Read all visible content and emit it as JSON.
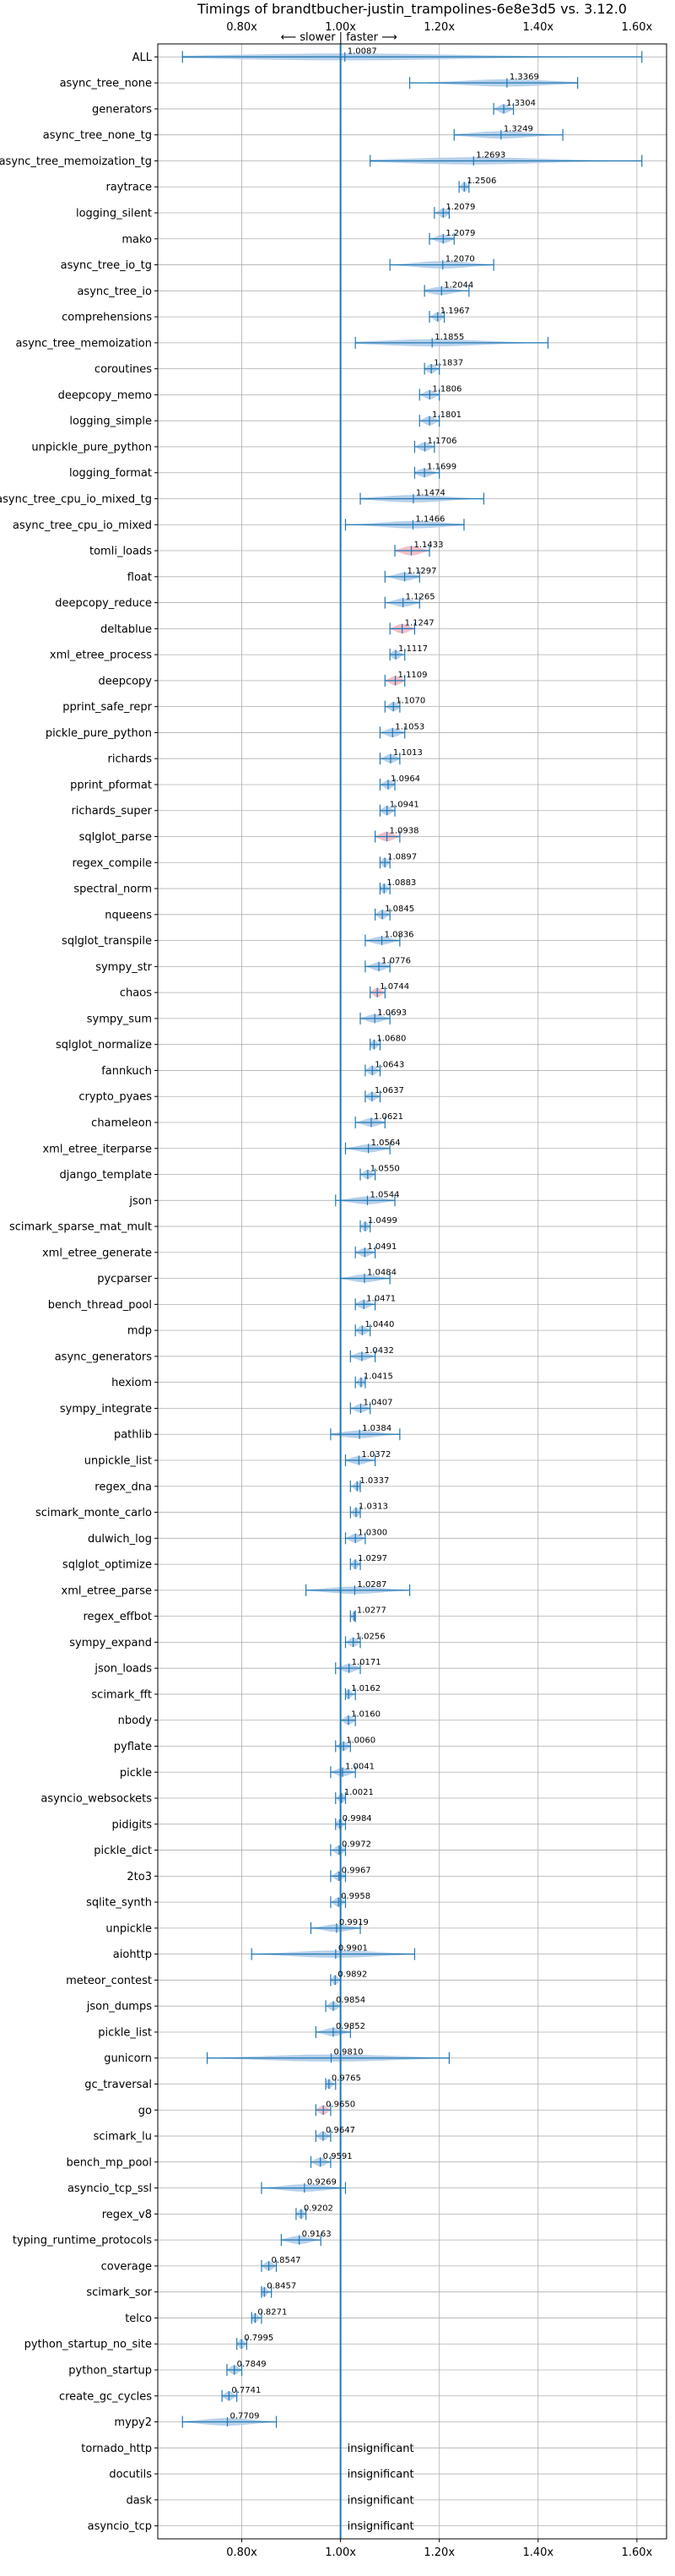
{
  "chart_data": {
    "type": "violin",
    "title": "Timings of brandtbucher-justin_trampolines-6e8e3d5 vs. 3.12.0",
    "annotation": "⟵ slower | faster ⟶",
    "xlim": [
      0.63,
      1.66
    ],
    "xticks": [
      0.8,
      1.0,
      1.2,
      1.4,
      1.6
    ],
    "xtick_labels": [
      "0.80x",
      "1.00x",
      "1.20x",
      "1.40x",
      "1.60x"
    ],
    "grid": true,
    "reference_line": 1.0,
    "colors": {
      "violin": "#aac8e6",
      "violin_edge": "#8fb3d9",
      "significant_slower": "#f2b3bd",
      "line": "#1f77b4",
      "grid": "#b0b0b0"
    },
    "benchmarks": [
      {
        "name": "ALL",
        "value": 1.0087,
        "label": "1.0087",
        "min": 0.68,
        "max": 1.61,
        "width": 0.012
      },
      {
        "name": "async_tree_none",
        "value": 1.3369,
        "label": "1.3369",
        "min": 1.14,
        "max": 1.48,
        "width": 0.022
      },
      {
        "name": "generators",
        "value": 1.3304,
        "label": "1.3304",
        "min": 1.31,
        "max": 1.35,
        "width": 0.015
      },
      {
        "name": "async_tree_none_tg",
        "value": 1.3249,
        "label": "1.3249",
        "min": 1.23,
        "max": 1.45,
        "width": 0.016
      },
      {
        "name": "async_tree_memoization_tg",
        "value": 1.2693,
        "label": "1.2693",
        "min": 1.06,
        "max": 1.61,
        "width": 0.024
      },
      {
        "name": "raytrace",
        "value": 1.2506,
        "label": "1.2506",
        "min": 1.24,
        "max": 1.26,
        "width": 0.012
      },
      {
        "name": "logging_silent",
        "value": 1.2079,
        "label": "1.2079",
        "min": 1.19,
        "max": 1.22,
        "width": 0.014
      },
      {
        "name": "mako",
        "value": 1.2079,
        "label": "1.2079",
        "min": 1.18,
        "max": 1.23,
        "width": 0.014
      },
      {
        "name": "async_tree_io_tg",
        "value": 1.207,
        "label": "1.2070",
        "min": 1.1,
        "max": 1.31,
        "width": 0.018
      },
      {
        "name": "async_tree_io",
        "value": 1.2044,
        "label": "1.2044",
        "min": 1.17,
        "max": 1.26,
        "width": 0.016
      },
      {
        "name": "comprehensions",
        "value": 1.1967,
        "label": "1.1967",
        "min": 1.18,
        "max": 1.21,
        "width": 0.013
      },
      {
        "name": "async_tree_memoization",
        "value": 1.1855,
        "label": "1.1855",
        "min": 1.03,
        "max": 1.42,
        "width": 0.02
      },
      {
        "name": "coroutines",
        "value": 1.1837,
        "label": "1.1837",
        "min": 1.17,
        "max": 1.2,
        "width": 0.013
      },
      {
        "name": "deepcopy_memo",
        "value": 1.1806,
        "label": "1.1806",
        "min": 1.16,
        "max": 1.2,
        "width": 0.014
      },
      {
        "name": "logging_simple",
        "value": 1.1801,
        "label": "1.1801",
        "min": 1.16,
        "max": 1.2,
        "width": 0.014
      },
      {
        "name": "unpickle_pure_python",
        "value": 1.1706,
        "label": "1.1706",
        "min": 1.15,
        "max": 1.19,
        "width": 0.014
      },
      {
        "name": "logging_format",
        "value": 1.1699,
        "label": "1.1699",
        "min": 1.15,
        "max": 1.2,
        "width": 0.014
      },
      {
        "name": "async_tree_cpu_io_mixed_tg",
        "value": 1.1474,
        "label": "1.1474",
        "min": 1.04,
        "max": 1.29,
        "width": 0.02
      },
      {
        "name": "async_tree_cpu_io_mixed",
        "value": 1.1466,
        "label": "1.1466",
        "min": 1.01,
        "max": 1.25,
        "width": 0.02
      },
      {
        "name": "tomli_loads",
        "value": 1.1433,
        "label": "1.1433",
        "min": 1.11,
        "max": 1.18,
        "width": 0.026,
        "significant": true
      },
      {
        "name": "float",
        "value": 1.1297,
        "label": "1.1297",
        "min": 1.09,
        "max": 1.16,
        "width": 0.016
      },
      {
        "name": "deepcopy_reduce",
        "value": 1.1265,
        "label": "1.1265",
        "min": 1.09,
        "max": 1.16,
        "width": 0.016
      },
      {
        "name": "deltablue",
        "value": 1.1247,
        "label": "1.1247",
        "min": 1.1,
        "max": 1.15,
        "width": 0.02,
        "significant": true
      },
      {
        "name": "xml_etree_process",
        "value": 1.1117,
        "label": "1.1117",
        "min": 1.1,
        "max": 1.13,
        "width": 0.013
      },
      {
        "name": "deepcopy",
        "value": 1.1109,
        "label": "1.1109",
        "min": 1.09,
        "max": 1.13,
        "width": 0.016,
        "significant": true
      },
      {
        "name": "pprint_safe_repr",
        "value": 1.107,
        "label": "1.1070",
        "min": 1.09,
        "max": 1.12,
        "width": 0.013
      },
      {
        "name": "pickle_pure_python",
        "value": 1.1053,
        "label": "1.1053",
        "min": 1.08,
        "max": 1.13,
        "width": 0.016
      },
      {
        "name": "richards",
        "value": 1.1013,
        "label": "1.1013",
        "min": 1.08,
        "max": 1.12,
        "width": 0.014
      },
      {
        "name": "pprint_pformat",
        "value": 1.0964,
        "label": "1.0964",
        "min": 1.08,
        "max": 1.11,
        "width": 0.013
      },
      {
        "name": "richards_super",
        "value": 1.0941,
        "label": "1.0941",
        "min": 1.08,
        "max": 1.11,
        "width": 0.013
      },
      {
        "name": "sqlglot_parse",
        "value": 1.0938,
        "label": "1.0938",
        "min": 1.07,
        "max": 1.12,
        "width": 0.02,
        "significant": true
      },
      {
        "name": "regex_compile",
        "value": 1.0897,
        "label": "1.0897",
        "min": 1.08,
        "max": 1.1,
        "width": 0.012
      },
      {
        "name": "spectral_norm",
        "value": 1.0883,
        "label": "1.0883",
        "min": 1.08,
        "max": 1.1,
        "width": 0.012
      },
      {
        "name": "nqueens",
        "value": 1.0845,
        "label": "1.0845",
        "min": 1.07,
        "max": 1.1,
        "width": 0.013
      },
      {
        "name": "sqlglot_transpile",
        "value": 1.0836,
        "label": "1.0836",
        "min": 1.05,
        "max": 1.12,
        "width": 0.014
      },
      {
        "name": "sympy_str",
        "value": 1.0776,
        "label": "1.0776",
        "min": 1.05,
        "max": 1.1,
        "width": 0.014
      },
      {
        "name": "chaos",
        "value": 1.0744,
        "label": "1.0744",
        "min": 1.06,
        "max": 1.09,
        "width": 0.013,
        "significant": true
      },
      {
        "name": "sympy_sum",
        "value": 1.0693,
        "label": "1.0693",
        "min": 1.04,
        "max": 1.1,
        "width": 0.014
      },
      {
        "name": "sqlglot_normalize",
        "value": 1.068,
        "label": "1.0680",
        "min": 1.06,
        "max": 1.08,
        "width": 0.012
      },
      {
        "name": "fannkuch",
        "value": 1.0643,
        "label": "1.0643",
        "min": 1.05,
        "max": 1.08,
        "width": 0.013
      },
      {
        "name": "crypto_pyaes",
        "value": 1.0637,
        "label": "1.0637",
        "min": 1.05,
        "max": 1.08,
        "width": 0.013
      },
      {
        "name": "chameleon",
        "value": 1.0621,
        "label": "1.0621",
        "min": 1.03,
        "max": 1.09,
        "width": 0.015
      },
      {
        "name": "xml_etree_iterparse",
        "value": 1.0564,
        "label": "1.0564",
        "min": 1.01,
        "max": 1.1,
        "width": 0.016
      },
      {
        "name": "django_template",
        "value": 1.055,
        "label": "1.0550",
        "min": 1.04,
        "max": 1.07,
        "width": 0.013
      },
      {
        "name": "json",
        "value": 1.0544,
        "label": "1.0544",
        "min": 0.99,
        "max": 1.11,
        "width": 0.016
      },
      {
        "name": "scimark_sparse_mat_mult",
        "value": 1.0499,
        "label": "1.0499",
        "min": 1.04,
        "max": 1.06,
        "width": 0.012
      },
      {
        "name": "xml_etree_generate",
        "value": 1.0491,
        "label": "1.0491",
        "min": 1.03,
        "max": 1.07,
        "width": 0.013
      },
      {
        "name": "pycparser",
        "value": 1.0484,
        "label": "1.0484",
        "min": 1.0,
        "max": 1.1,
        "width": 0.016
      },
      {
        "name": "bench_thread_pool",
        "value": 1.0471,
        "label": "1.0471",
        "min": 1.03,
        "max": 1.07,
        "width": 0.013
      },
      {
        "name": "mdp",
        "value": 1.044,
        "label": "1.0440",
        "min": 1.03,
        "max": 1.06,
        "width": 0.013
      },
      {
        "name": "async_generators",
        "value": 1.0432,
        "label": "1.0432",
        "min": 1.02,
        "max": 1.07,
        "width": 0.013
      },
      {
        "name": "hexiom",
        "value": 1.0415,
        "label": "1.0415",
        "min": 1.03,
        "max": 1.05,
        "width": 0.012
      },
      {
        "name": "sympy_integrate",
        "value": 1.0407,
        "label": "1.0407",
        "min": 1.02,
        "max": 1.06,
        "width": 0.013
      },
      {
        "name": "pathlib",
        "value": 1.0384,
        "label": "1.0384",
        "min": 0.98,
        "max": 1.12,
        "width": 0.014
      },
      {
        "name": "unpickle_list",
        "value": 1.0372,
        "label": "1.0372",
        "min": 1.01,
        "max": 1.07,
        "width": 0.014
      },
      {
        "name": "regex_dna",
        "value": 1.0337,
        "label": "1.0337",
        "min": 1.02,
        "max": 1.04,
        "width": 0.012
      },
      {
        "name": "scimark_monte_carlo",
        "value": 1.0313,
        "label": "1.0313",
        "min": 1.02,
        "max": 1.04,
        "width": 0.012
      },
      {
        "name": "dulwich_log",
        "value": 1.03,
        "label": "1.0300",
        "min": 1.01,
        "max": 1.05,
        "width": 0.013
      },
      {
        "name": "sqlglot_optimize",
        "value": 1.0297,
        "label": "1.0297",
        "min": 1.02,
        "max": 1.04,
        "width": 0.012
      },
      {
        "name": "xml_etree_parse",
        "value": 1.0287,
        "label": "1.0287",
        "min": 0.93,
        "max": 1.14,
        "width": 0.016
      },
      {
        "name": "regex_effbot",
        "value": 1.0277,
        "label": "1.0277",
        "min": 1.02,
        "max": 1.03,
        "width": 0.01
      },
      {
        "name": "sympy_expand",
        "value": 1.0256,
        "label": "1.0256",
        "min": 1.01,
        "max": 1.04,
        "width": 0.013
      },
      {
        "name": "json_loads",
        "value": 1.0171,
        "label": "1.0171",
        "min": 0.99,
        "max": 1.04,
        "width": 0.014
      },
      {
        "name": "scimark_fft",
        "value": 1.0162,
        "label": "1.0162",
        "min": 1.01,
        "max": 1.03,
        "width": 0.012
      },
      {
        "name": "nbody",
        "value": 1.016,
        "label": "1.0160",
        "min": 1.0,
        "max": 1.03,
        "width": 0.012
      },
      {
        "name": "pyflate",
        "value": 1.006,
        "label": "1.0060",
        "min": 0.99,
        "max": 1.02,
        "width": 0.012
      },
      {
        "name": "pickle",
        "value": 1.0041,
        "label": "1.0041",
        "min": 0.98,
        "max": 1.03,
        "width": 0.014
      },
      {
        "name": "asyncio_websockets",
        "value": 1.0021,
        "label": "1.0021",
        "min": 0.99,
        "max": 1.01,
        "width": 0.012
      },
      {
        "name": "pidigits",
        "value": 0.9984,
        "label": "0.9984",
        "min": 0.99,
        "max": 1.01,
        "width": 0.012
      },
      {
        "name": "pickle_dict",
        "value": 0.9972,
        "label": "0.9972",
        "min": 0.98,
        "max": 1.01,
        "width": 0.012
      },
      {
        "name": "2to3",
        "value": 0.9967,
        "label": "0.9967",
        "min": 0.98,
        "max": 1.01,
        "width": 0.013
      },
      {
        "name": "sqlite_synth",
        "value": 0.9958,
        "label": "0.9958",
        "min": 0.98,
        "max": 1.01,
        "width": 0.012
      },
      {
        "name": "unpickle",
        "value": 0.9919,
        "label": "0.9919",
        "min": 0.94,
        "max": 1.04,
        "width": 0.012
      },
      {
        "name": "aiohttp",
        "value": 0.9901,
        "label": "0.9901",
        "min": 0.82,
        "max": 1.15,
        "width": 0.02
      },
      {
        "name": "meteor_contest",
        "value": 0.9892,
        "label": "0.9892",
        "min": 0.98,
        "max": 1.0,
        "width": 0.012
      },
      {
        "name": "json_dumps",
        "value": 0.9854,
        "label": "0.9854",
        "min": 0.97,
        "max": 1.0,
        "width": 0.012
      },
      {
        "name": "pickle_list",
        "value": 0.9852,
        "label": "0.9852",
        "min": 0.95,
        "max": 1.02,
        "width": 0.013
      },
      {
        "name": "gunicorn",
        "value": 0.981,
        "label": "0.9810",
        "min": 0.73,
        "max": 1.22,
        "width": 0.022
      },
      {
        "name": "gc_traversal",
        "value": 0.9765,
        "label": "0.9765",
        "min": 0.97,
        "max": 0.99,
        "width": 0.012
      },
      {
        "name": "go",
        "value": 0.965,
        "label": "0.9650",
        "min": 0.95,
        "max": 0.98,
        "width": 0.013,
        "significant": true
      },
      {
        "name": "scimark_lu",
        "value": 0.9647,
        "label": "0.9647",
        "min": 0.95,
        "max": 0.98,
        "width": 0.012
      },
      {
        "name": "bench_mp_pool",
        "value": 0.9591,
        "label": "0.9591",
        "min": 0.94,
        "max": 0.98,
        "width": 0.013
      },
      {
        "name": "asyncio_tcp_ssl",
        "value": 0.9269,
        "label": "0.9269",
        "min": 0.84,
        "max": 1.01,
        "width": 0.014
      },
      {
        "name": "regex_v8",
        "value": 0.9202,
        "label": "0.9202",
        "min": 0.91,
        "max": 0.93,
        "width": 0.012
      },
      {
        "name": "typing_runtime_protocols",
        "value": 0.9163,
        "label": "0.9163",
        "min": 0.88,
        "max": 0.96,
        "width": 0.016
      },
      {
        "name": "coverage",
        "value": 0.8547,
        "label": "0.8547",
        "min": 0.84,
        "max": 0.87,
        "width": 0.013
      },
      {
        "name": "scimark_sor",
        "value": 0.8457,
        "label": "0.8457",
        "min": 0.84,
        "max": 0.86,
        "width": 0.012
      },
      {
        "name": "telco",
        "value": 0.8271,
        "label": "0.8271",
        "min": 0.82,
        "max": 0.84,
        "width": 0.012
      },
      {
        "name": "python_startup_no_site",
        "value": 0.7995,
        "label": "0.7995",
        "min": 0.79,
        "max": 0.81,
        "width": 0.013
      },
      {
        "name": "python_startup",
        "value": 0.7849,
        "label": "0.7849",
        "min": 0.77,
        "max": 0.8,
        "width": 0.013
      },
      {
        "name": "create_gc_cycles",
        "value": 0.7741,
        "label": "0.7741",
        "min": 0.76,
        "max": 0.79,
        "width": 0.013
      },
      {
        "name": "mypy2",
        "value": 0.7709,
        "label": "0.7709",
        "min": 0.68,
        "max": 0.87,
        "width": 0.018
      },
      {
        "name": "tornado_http",
        "value": null,
        "label": "insignificant"
      },
      {
        "name": "docutils",
        "value": null,
        "label": "insignificant"
      },
      {
        "name": "dask",
        "value": null,
        "label": "insignificant"
      },
      {
        "name": "asyncio_tcp",
        "value": null,
        "label": "insignificant"
      }
    ]
  }
}
